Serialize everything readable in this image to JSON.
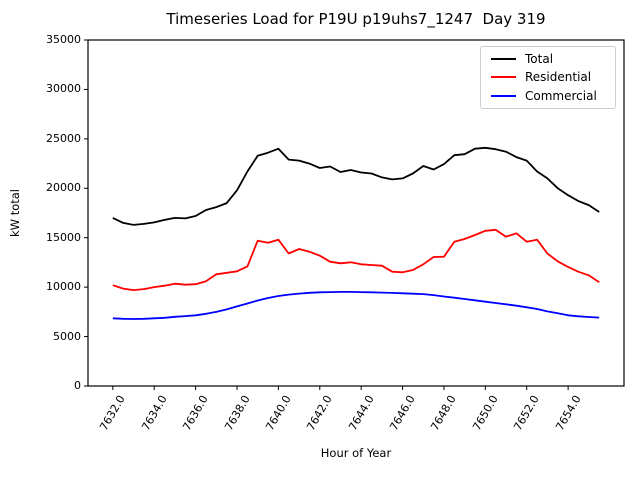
{
  "chart_data": {
    "type": "line",
    "title": "Timeseries Load for P19U p19uhs7_1247  Day 319",
    "xlabel": "Hour of Year",
    "ylabel": "kW total",
    "xlim": [
      7630.8,
      7656.7
    ],
    "ylim": [
      0,
      35000
    ],
    "grid": false,
    "legend_position": "upper right",
    "x_ticks": [
      7632,
      7634,
      7636,
      7638,
      7640,
      7642,
      7644,
      7646,
      7648,
      7650,
      7652,
      7654
    ],
    "x_tick_labels": [
      "7632.0",
      "7634.0",
      "7636.0",
      "7638.0",
      "7640.0",
      "7642.0",
      "7644.0",
      "7646.0",
      "7648.0",
      "7650.0",
      "7652.0",
      "7654.0"
    ],
    "y_ticks": [
      0,
      5000,
      10000,
      15000,
      20000,
      25000,
      30000,
      35000
    ],
    "y_tick_labels": [
      "0",
      "5000",
      "10000",
      "15000",
      "20000",
      "25000",
      "30000",
      "35000"
    ],
    "x": [
      7632,
      7632.5,
      7633,
      7633.5,
      7634,
      7634.5,
      7635,
      7635.5,
      7636,
      7636.5,
      7637,
      7637.5,
      7638,
      7638.5,
      7639,
      7639.5,
      7640,
      7640.5,
      7641,
      7641.5,
      7642,
      7642.5,
      7643,
      7643.5,
      7644,
      7644.5,
      7645,
      7645.5,
      7646,
      7646.5,
      7647,
      7647.5,
      7648,
      7648.5,
      7649,
      7649.5,
      7650,
      7650.5,
      7651,
      7651.5,
      7652,
      7652.5,
      7653,
      7653.5,
      7654,
      7654.5,
      7655,
      7655.5
    ],
    "series": [
      {
        "name": "Total",
        "color": "#000000",
        "values": [
          17000,
          16500,
          16300,
          16400,
          16550,
          16800,
          17000,
          16950,
          17200,
          17800,
          18100,
          18500,
          19800,
          21700,
          23300,
          23600,
          24000,
          22900,
          22800,
          22500,
          22050,
          22200,
          21650,
          21850,
          21600,
          21500,
          21100,
          20900,
          21000,
          21500,
          22250,
          21900,
          22450,
          23350,
          23450,
          24000,
          24100,
          23950,
          23700,
          23150,
          22800,
          21700,
          21000,
          20000,
          19300,
          18700,
          18300,
          17600
        ]
      },
      {
        "name": "Residential",
        "color": "#ff0000",
        "values": [
          10200,
          9850,
          9700,
          9800,
          10000,
          10150,
          10350,
          10250,
          10300,
          10600,
          11300,
          11450,
          11600,
          12100,
          14700,
          14500,
          14800,
          13400,
          13860,
          13590,
          13180,
          12570,
          12410,
          12510,
          12310,
          12240,
          12170,
          11560,
          11500,
          11730,
          12310,
          13050,
          13080,
          14600,
          14870,
          15270,
          15700,
          15800,
          15100,
          15450,
          14600,
          14800,
          13400,
          12600,
          12050,
          11550,
          11200,
          10500
        ]
      },
      {
        "name": "Commercial",
        "color": "#0000ff",
        "values": [
          6850,
          6800,
          6780,
          6800,
          6850,
          6900,
          7000,
          7070,
          7150,
          7300,
          7500,
          7750,
          8050,
          8350,
          8650,
          8900,
          9100,
          9250,
          9350,
          9430,
          9480,
          9500,
          9520,
          9520,
          9500,
          9480,
          9450,
          9420,
          9380,
          9340,
          9300,
          9200,
          9050,
          8930,
          8800,
          8670,
          8530,
          8400,
          8260,
          8120,
          7960,
          7790,
          7550,
          7350,
          7150,
          7050,
          6980,
          6920
        ]
      }
    ]
  }
}
